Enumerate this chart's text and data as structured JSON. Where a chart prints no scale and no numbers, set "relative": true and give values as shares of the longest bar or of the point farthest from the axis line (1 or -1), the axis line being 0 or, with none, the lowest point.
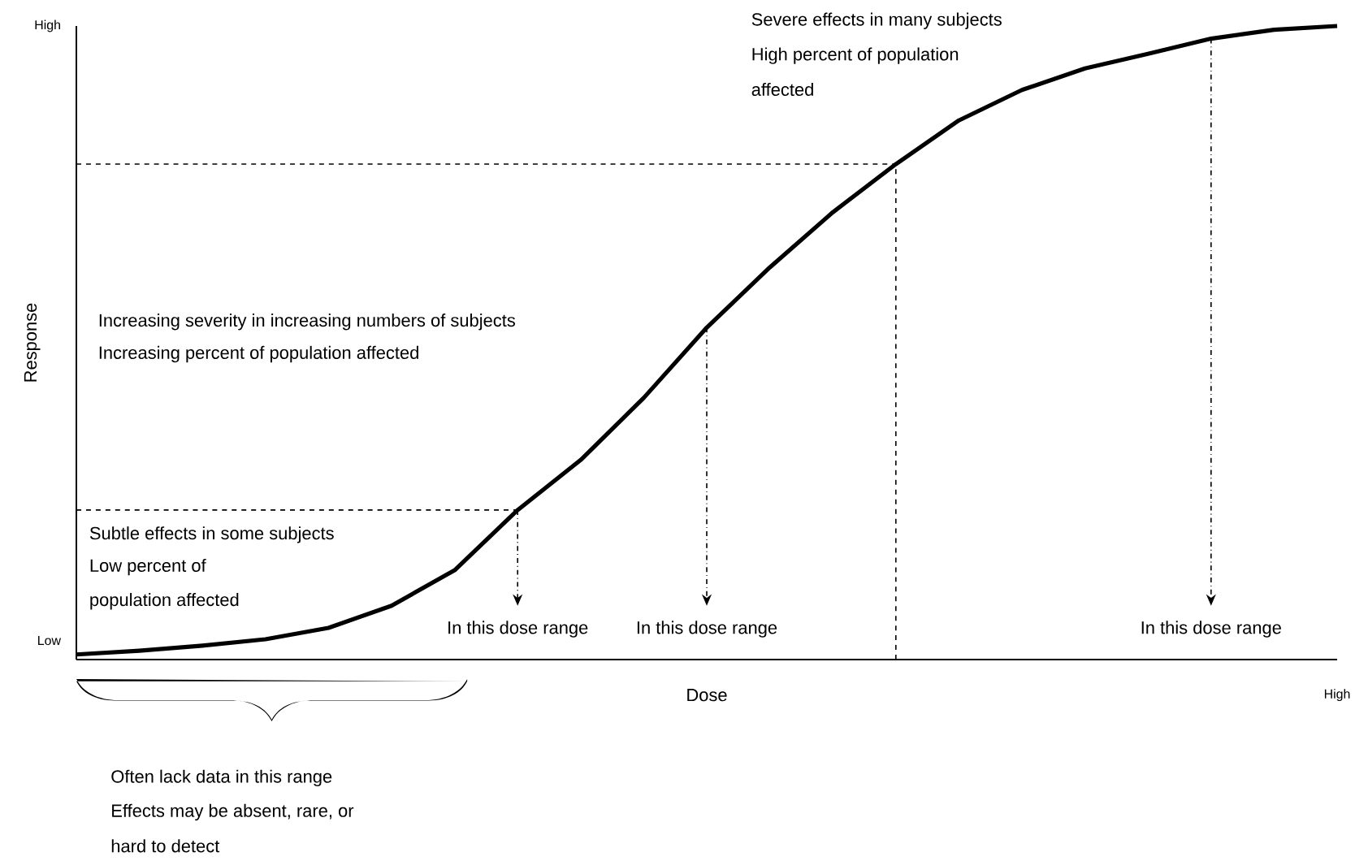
{
  "chart_data": {
    "type": "line",
    "xlabel": "Dose",
    "ylabel": "Response",
    "relative": true,
    "categories": [
      null,
      null,
      null,
      null,
      null,
      null,
      null,
      null,
      null,
      null,
      null,
      null,
      null,
      null,
      null,
      null,
      null,
      null,
      null,
      null,
      null
    ],
    "series": [
      {
        "color": "#000000",
        "values": [
          0.008,
          0.014,
          0.022,
          0.032,
          0.05,
          0.085,
          0.141,
          0.236,
          0.315,
          0.413,
          0.524,
          0.619,
          0.706,
          0.782,
          0.851,
          0.899,
          0.933,
          0.956,
          0.98,
          0.994,
          1.0
        ]
      }
    ],
    "annotations": [
      "Severe effects in many subjects",
      "High percent of population",
      "affected",
      "Increasing severity in increasing numbers of subjects",
      "Increasing percent of population affected",
      "Subtle effects in some subjects",
      "Low percent of",
      "population affected",
      "Often lack data in this range",
      "Effects may be absent, rare, or",
      "hard to detect",
      "High",
      "Low",
      "High",
      "In this dose range",
      "In this dose range",
      "In this dose range"
    ],
    "ref_lines": [
      {
        "axis": "y",
        "value": 0.236,
        "line_style": "dashed"
      },
      {
        "axis": "y",
        "value": 0.782,
        "line_style": "dashed"
      }
    ],
    "marker": "none",
    "line_style": "solid"
  }
}
